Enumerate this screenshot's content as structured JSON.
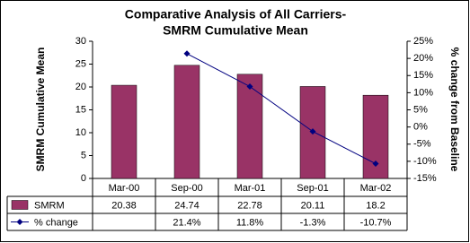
{
  "chart_data": {
    "type": "bar-line",
    "title": [
      "Comparative Analysis of All Carriers-",
      "SMRM Cumulative Mean"
    ],
    "y_label": "SMRM Cumulative Mean",
    "y2_label": "% change from Baseline",
    "categories": [
      "Mar-00",
      "Sep-00",
      "Mar-01",
      "Sep-01",
      "Mar-02"
    ],
    "series": [
      {
        "name": "SMRM",
        "type": "bar",
        "color": "#993366",
        "values": [
          20.38,
          24.74,
          22.78,
          20.11,
          18.2
        ]
      },
      {
        "name": "% change",
        "type": "line",
        "axis": "y2",
        "color": "#000080",
        "values": [
          null,
          21.4,
          11.8,
          -1.3,
          -10.7
        ],
        "value_labels": [
          null,
          "21.4%",
          "11.8%",
          "-1.3%",
          "-10.7%"
        ]
      }
    ],
    "ylim": [
      0,
      30
    ],
    "yticks": [
      0,
      5,
      10,
      15,
      20,
      25,
      30
    ],
    "y2lim": [
      -15,
      25
    ],
    "y2ticks": [
      {
        "value": -15,
        "label": "-15%"
      },
      {
        "value": -10,
        "label": "-10%"
      },
      {
        "value": -5,
        "label": "-5%"
      },
      {
        "value": 0,
        "label": "0%"
      },
      {
        "value": 5,
        "label": "5%"
      },
      {
        "value": 10,
        "label": "10%"
      },
      {
        "value": 15,
        "label": "15%"
      },
      {
        "value": 20,
        "label": "20%"
      },
      {
        "value": 25,
        "label": "25%"
      }
    ],
    "grid": false,
    "data_table": true
  }
}
